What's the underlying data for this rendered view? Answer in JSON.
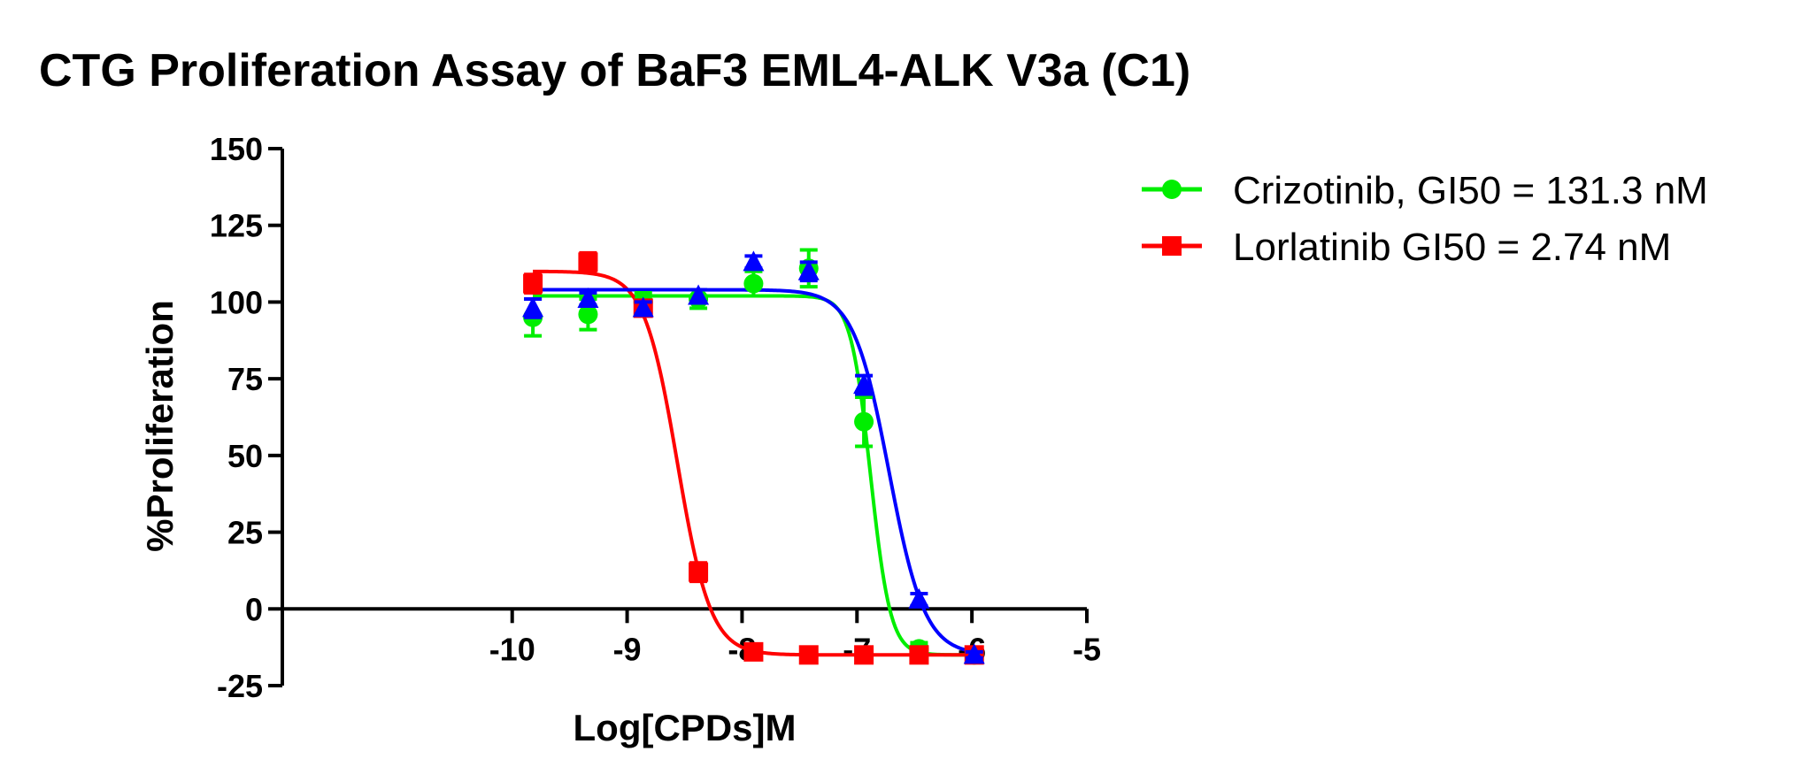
{
  "chart_data": {
    "type": "scatter",
    "title": "CTG Proliferation Assay of BaF3 EML4-ALK V3a (C1)",
    "xlabel": "Log[CPDs]M",
    "ylabel": "%Proliferation",
    "xlim": [
      -12,
      -5
    ],
    "ylim": [
      -25,
      150
    ],
    "xticks": [
      -10,
      -9,
      -8,
      -7,
      -6,
      -5
    ],
    "xtick_labels": [
      "-10",
      "-9",
      "-8",
      "-7",
      "-6",
      "-5"
    ],
    "yticks": [
      -25,
      0,
      25,
      50,
      75,
      100,
      125,
      150
    ],
    "ytick_labels": [
      "-25",
      "0",
      "25",
      "50",
      "75",
      "100",
      "125",
      "150"
    ],
    "grid": false,
    "legend_position": "top-right",
    "series": [
      {
        "name": "Crizotinib, GI50 = 131.3 nM",
        "color": "#00ee00",
        "marker": "circle",
        "x": [
          -9.82,
          -9.34,
          -8.86,
          -8.38,
          -7.9,
          -7.42,
          -6.94,
          -6.46,
          -5.98
        ],
        "y": [
          95,
          96,
          100,
          101,
          106,
          111,
          61,
          -13,
          -15
        ],
        "err": [
          6,
          5,
          3,
          3,
          4,
          6,
          8,
          2,
          2
        ],
        "fit": {
          "top": 102,
          "bottom": -15,
          "logGI50": -6.882,
          "hill": 5
        }
      },
      {
        "name": "Lorlatinib GI50 = 2.74 nM",
        "color": "#ff0000",
        "marker": "square",
        "x": [
          -9.82,
          -9.34,
          -8.86,
          -8.38,
          -7.9,
          -7.42,
          -6.94,
          -6.46,
          -5.98
        ],
        "y": [
          106,
          113,
          98,
          12,
          -14,
          -15,
          -15,
          -15,
          -15
        ],
        "err": [
          3,
          3,
          2,
          3,
          1,
          1,
          1,
          1,
          1
        ],
        "fit": {
          "top": 110,
          "bottom": -15,
          "logGI50": -8.562,
          "hill": 3
        }
      },
      {
        "color": "#0000ff",
        "marker": "triangle",
        "x": [
          -9.82,
          -9.34,
          -8.86,
          -8.38,
          -7.9,
          -7.42,
          -6.94,
          -6.46,
          -5.98
        ],
        "y": [
          98,
          101,
          98,
          102,
          113,
          110,
          73,
          3,
          -15
        ],
        "err": [
          3,
          2,
          2,
          2,
          2,
          3,
          3,
          2,
          1
        ],
        "fit": {
          "top": 104,
          "bottom": -15,
          "logGI50": -6.72,
          "hill": 2.8
        }
      }
    ]
  }
}
